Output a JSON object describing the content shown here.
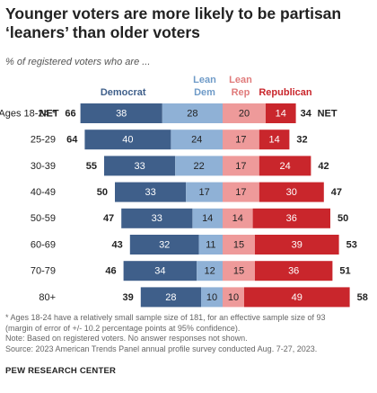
{
  "title": "Younger voters are more likely to be partisan ‘leaners’ than older voters",
  "subtitle": "% of registered voters who are ...",
  "notes": [
    "* Ages 18-24 have a relatively small sample size of 181, for an effective sample size of 93",
    "(margin of error of +/- 10.2 percentage points at 95% confidence).",
    "Note: Based on registered voters. No answer responses not shown.",
    "Source: 2023 American Trends Panel annual profile survey conducted Aug. 7-27, 2023."
  ],
  "source_line": "PEW RESEARCH CENTER",
  "chart_data": {
    "type": "bar",
    "orientation": "horizontal-diverging",
    "categories": [
      "Ages 18-24 *",
      "25-29",
      "30-39",
      "40-49",
      "50-59",
      "60-69",
      "70-79",
      "80+"
    ],
    "series": [
      {
        "name": "Democrat",
        "values": [
          38,
          40,
          33,
          33,
          33,
          32,
          34,
          28
        ],
        "color": "#3f5f8a",
        "side": "left"
      },
      {
        "name": "Lean Dem",
        "values": [
          28,
          24,
          22,
          17,
          14,
          11,
          12,
          10
        ],
        "color": "#8fb1d6",
        "side": "left"
      },
      {
        "name": "Lean Rep",
        "values": [
          20,
          17,
          17,
          17,
          14,
          15,
          15,
          10
        ],
        "color": "#ee9a9a",
        "side": "right"
      },
      {
        "name": "Republican",
        "values": [
          14,
          14,
          24,
          30,
          36,
          39,
          36,
          49
        ],
        "color": "#c9262c",
        "side": "right"
      }
    ],
    "net_dem": [
      66,
      64,
      55,
      50,
      47,
      43,
      46,
      39
    ],
    "net_rep": [
      34,
      32,
      42,
      47,
      50,
      53,
      51,
      58
    ],
    "net_label": "NET",
    "legend_labels": {
      "democrat": "Democrat",
      "lean_dem": [
        "Lean",
        "Dem"
      ],
      "lean_rep": [
        "Lean",
        "Rep"
      ],
      "republican": "Republican"
    },
    "colors": {
      "democrat": "#3f5f8a",
      "lean_dem": "#8fb1d6",
      "lean_rep": "#ee9a9a",
      "republican": "#c9262c",
      "democrat_text": "#3f5f8a",
      "lean_dem_text": "#6f9bc8",
      "lean_rep_text": "#e07b7b",
      "republican_text": "#c9262c"
    }
  }
}
